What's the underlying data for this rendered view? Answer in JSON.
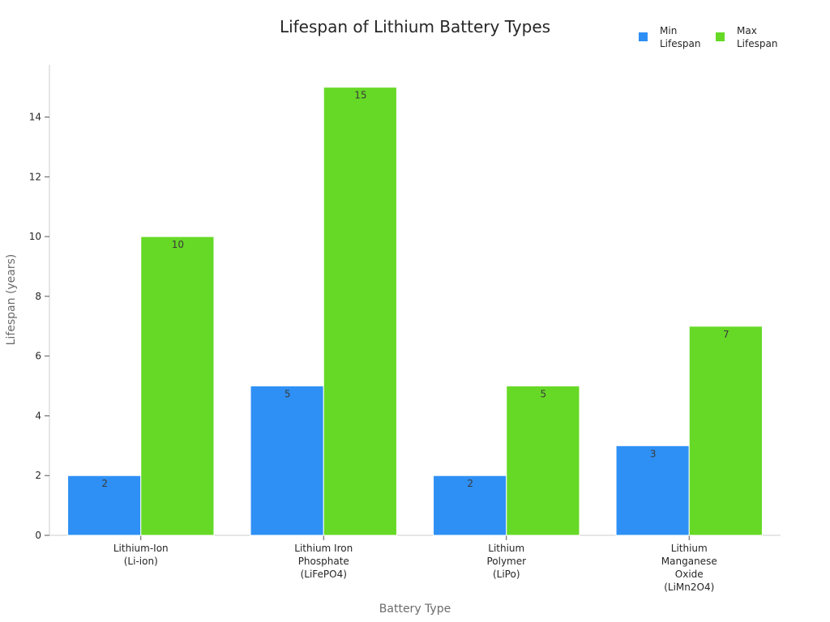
{
  "chart_data": {
    "type": "bar",
    "title": "Lifespan of Lithium Battery Types",
    "xlabel": "Battery Type",
    "ylabel": "Lifespan (years)",
    "ylim": [
      0,
      15.75
    ],
    "yticks": [
      0,
      2,
      4,
      6,
      8,
      10,
      12,
      14
    ],
    "categories": [
      [
        "Lithium-Ion",
        "(Li-ion)"
      ],
      [
        "Lithium Iron",
        "Phosphate",
        "(LiFePO4)"
      ],
      [
        "Lithium",
        "Polymer",
        "(LiPo)"
      ],
      [
        "Lithium",
        "Manganese",
        "Oxide",
        "(LiMn2O4)"
      ]
    ],
    "series": [
      {
        "name": [
          "Min",
          "Lifespan"
        ],
        "color": "#2e90f5",
        "values": [
          2,
          5,
          2,
          3
        ]
      },
      {
        "name": [
          "Max",
          "Lifespan"
        ],
        "color": "#66d926",
        "values": [
          10,
          15,
          5,
          7
        ]
      }
    ],
    "legend": "top-right",
    "grid": false
  }
}
